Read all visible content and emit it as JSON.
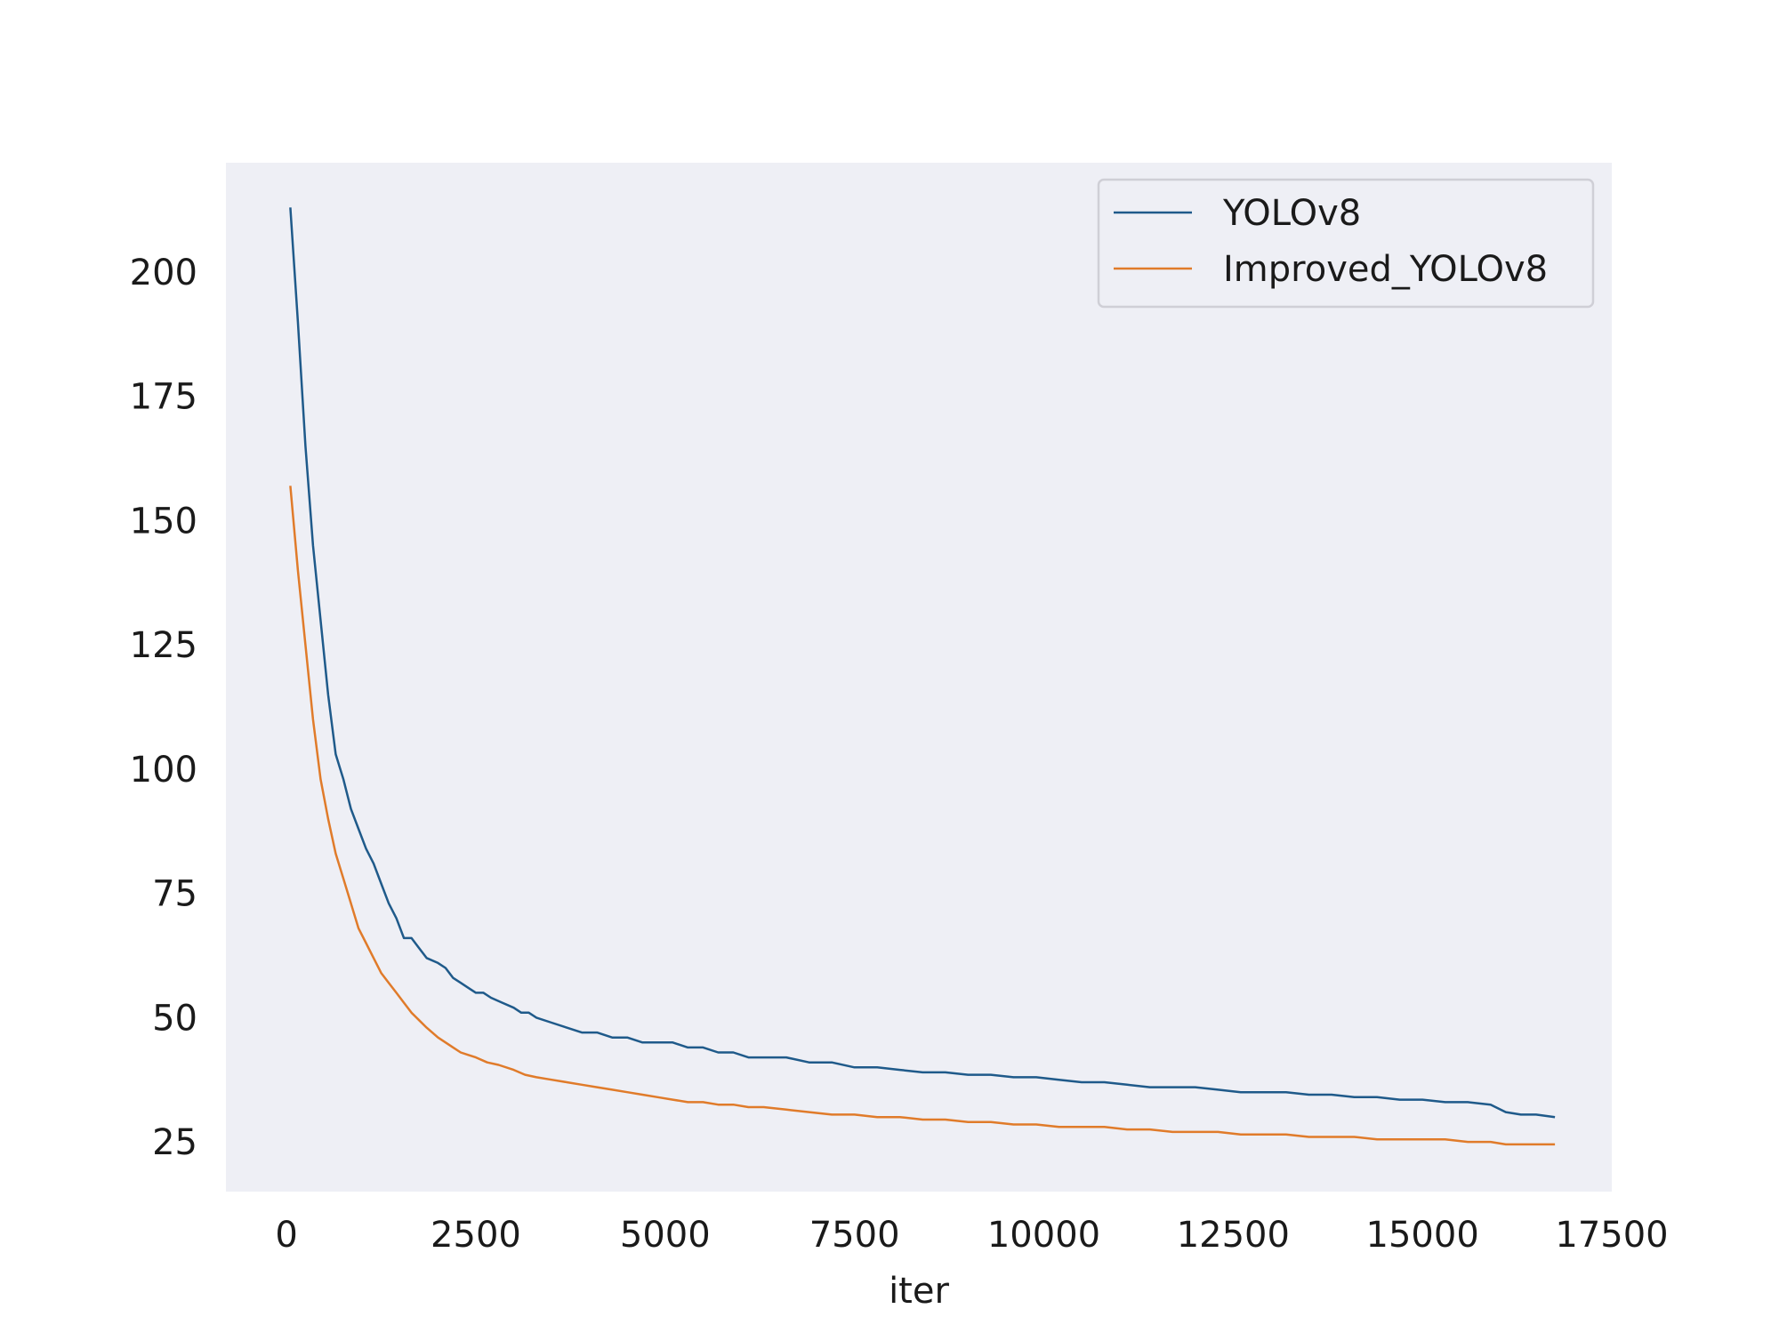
{
  "chart_data": {
    "type": "line",
    "title": "",
    "xlabel": "iter",
    "ylabel": "",
    "xlim": [
      -800,
      17500
    ],
    "ylim": [
      15,
      222
    ],
    "xticks": [
      0,
      2500,
      5000,
      7500,
      10000,
      12500,
      15000,
      17500
    ],
    "xtick_labels": [
      "0",
      "2500",
      "5000",
      "7500",
      "10000",
      "12500",
      "15000",
      "17500"
    ],
    "yticks": [
      25,
      50,
      75,
      100,
      125,
      150,
      175,
      200
    ],
    "ytick_labels": [
      "25",
      "50",
      "75",
      "100",
      "125",
      "150",
      "175",
      "200"
    ],
    "grid": false,
    "legend_position": "top-right",
    "background_color": "#eeeff5",
    "series": [
      {
        "name": "YOLOv8",
        "color": "#1f5a8a",
        "x": [
          50,
          150,
          250,
          350,
          450,
          550,
          650,
          750,
          850,
          950,
          1050,
          1150,
          1250,
          1350,
          1450,
          1550,
          1650,
          1750,
          1850,
          2000,
          2100,
          2200,
          2300,
          2400,
          2500,
          2600,
          2700,
          2850,
          3000,
          3100,
          3200,
          3300,
          3500,
          3700,
          3900,
          4100,
          4300,
          4500,
          4700,
          4900,
          5100,
          5300,
          5500,
          5700,
          5900,
          6100,
          6300,
          6600,
          6900,
          7200,
          7500,
          7800,
          8100,
          8400,
          8700,
          9000,
          9300,
          9600,
          9900,
          10200,
          10500,
          10800,
          11100,
          11400,
          11700,
          12000,
          12300,
          12600,
          12900,
          13200,
          13500,
          13800,
          14100,
          14400,
          14700,
          15000,
          15300,
          15600,
          15900,
          16100,
          16300,
          16500,
          16750
        ],
        "values": [
          213,
          190,
          165,
          145,
          130,
          115,
          103,
          98,
          92,
          88,
          84,
          81,
          77,
          73,
          70,
          66,
          66,
          64,
          62,
          61,
          60,
          58,
          57,
          56,
          55,
          55,
          54,
          53,
          52,
          51,
          51,
          50,
          49,
          48,
          47,
          47,
          46,
          46,
          45,
          45,
          45,
          44,
          44,
          43,
          43,
          42,
          42,
          42,
          41,
          41,
          40,
          40,
          39.5,
          39,
          39,
          38.5,
          38.5,
          38,
          38,
          37.5,
          37,
          37,
          36.5,
          36,
          36,
          36,
          35.5,
          35,
          35,
          35,
          34.5,
          34.5,
          34,
          34,
          33.5,
          33.5,
          33,
          33,
          32.5,
          31,
          30.5,
          30.5,
          30
        ]
      },
      {
        "name": "Improved_YOLOv8",
        "color": "#e07b2a",
        "x": [
          50,
          150,
          250,
          350,
          450,
          550,
          650,
          750,
          850,
          950,
          1050,
          1150,
          1250,
          1350,
          1450,
          1550,
          1650,
          1750,
          1850,
          2000,
          2100,
          2200,
          2300,
          2400,
          2500,
          2650,
          2800,
          3000,
          3150,
          3300,
          3500,
          3700,
          3900,
          4100,
          4300,
          4500,
          4700,
          4900,
          5100,
          5300,
          5500,
          5700,
          5900,
          6100,
          6300,
          6600,
          6900,
          7200,
          7500,
          7800,
          8100,
          8400,
          8700,
          9000,
          9300,
          9600,
          9900,
          10200,
          10500,
          10800,
          11100,
          11400,
          11700,
          12000,
          12300,
          12600,
          12900,
          13200,
          13500,
          13800,
          14100,
          14400,
          14700,
          15000,
          15300,
          15600,
          15900,
          16100,
          16300,
          16500,
          16750
        ],
        "values": [
          157,
          140,
          125,
          110,
          98,
          90,
          83,
          78,
          73,
          68,
          65,
          62,
          59,
          57,
          55,
          53,
          51,
          49.5,
          48,
          46,
          45,
          44,
          43,
          42.5,
          42,
          41,
          40.5,
          39.5,
          38.5,
          38,
          37.5,
          37,
          36.5,
          36,
          35.5,
          35,
          34.5,
          34,
          33.5,
          33,
          33,
          32.5,
          32.5,
          32,
          32,
          31.5,
          31,
          30.5,
          30.5,
          30,
          30,
          29.5,
          29.5,
          29,
          29,
          28.5,
          28.5,
          28,
          28,
          28,
          27.5,
          27.5,
          27,
          27,
          27,
          26.5,
          26.5,
          26.5,
          26,
          26,
          26,
          25.5,
          25.5,
          25.5,
          25.5,
          25,
          25,
          24.5,
          24.5,
          24.5,
          24.5
        ]
      }
    ]
  }
}
